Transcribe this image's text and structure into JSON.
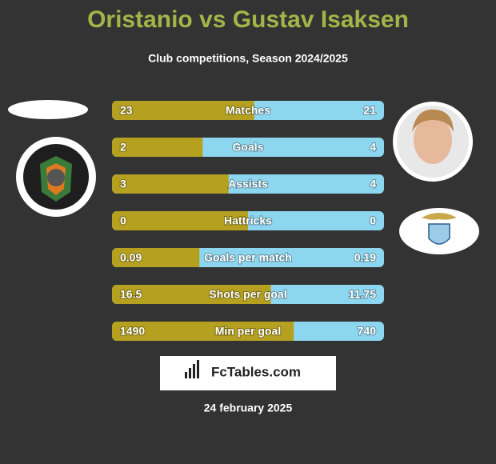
{
  "title": "Oristanio vs Gustav Isaksen",
  "subtitle": "Club competitions, Season 2024/2025",
  "rows": [
    {
      "label": "Matches",
      "left": 23,
      "right": 21
    },
    {
      "label": "Goals",
      "left": 2,
      "right": 4
    },
    {
      "label": "Assists",
      "left": 3,
      "right": 4
    },
    {
      "label": "Hattricks",
      "left": 0,
      "right": 0
    },
    {
      "label": "Goals per match",
      "left": 0.09,
      "right": 0.19
    },
    {
      "label": "Shots per goal",
      "left": 16.5,
      "right": 11.75
    },
    {
      "label": "Min per goal",
      "left": 1490,
      "right": 740
    }
  ],
  "brand": "FcTables.com",
  "date": "24 february 2025"
}
